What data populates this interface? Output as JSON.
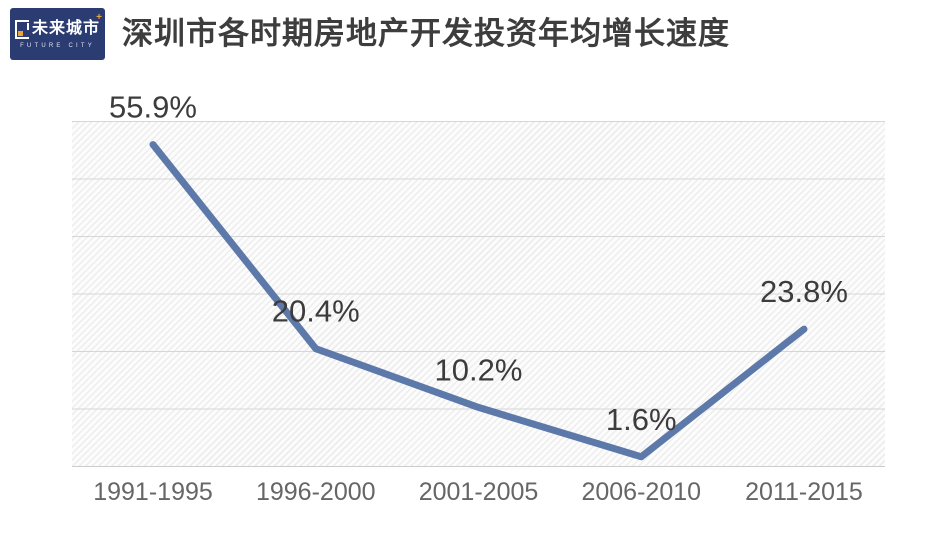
{
  "header": {
    "logo": {
      "cn": "未来城市",
      "en": "FUTURE CITY",
      "sparkle": "+",
      "bg_color": "#2b3c72",
      "accent_color": "#e9a63a"
    },
    "title": "深圳市各时期房地产开发投资年均增长速度"
  },
  "chart_data": {
    "type": "line",
    "title": "深圳市各时期房地产开发投资年均增长速度",
    "categories": [
      "1991-1995",
      "1996-2000",
      "2001-2005",
      "2006-2010",
      "2011-2015"
    ],
    "values": [
      55.9,
      20.4,
      10.2,
      1.6,
      23.8
    ],
    "labels": [
      "55.9%",
      "20.4%",
      "10.2%",
      "1.6%",
      "23.8%"
    ],
    "xlabel": "",
    "ylabel": "",
    "ylim": [
      0,
      60
    ],
    "gridline_step": 10,
    "grid": "horizontal",
    "legend": "none",
    "line_color": "#5d79aa",
    "label_color": "#3c3c3c",
    "axis_label_color": "#666666"
  }
}
